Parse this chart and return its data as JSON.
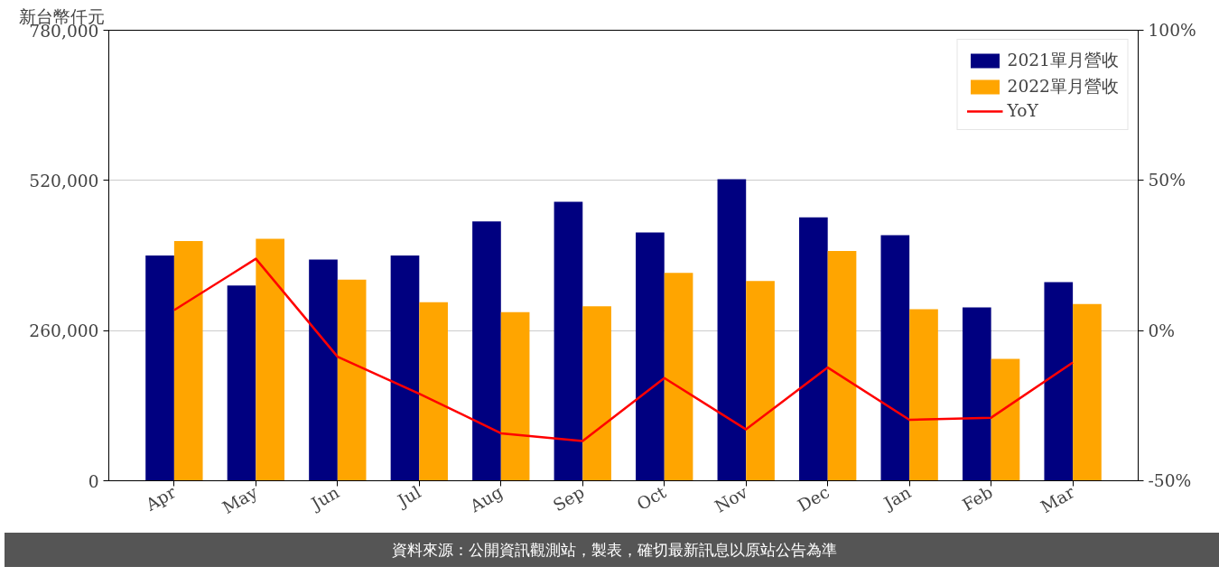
{
  "chart_data": {
    "type": "bar",
    "ylabel": "新台幣仟元",
    "categories": [
      "Apr",
      "May",
      "Jun",
      "Jul",
      "Aug",
      "Sep",
      "Oct",
      "Nov",
      "Dec",
      "Jan",
      "Feb",
      "Mar"
    ],
    "series": [
      {
        "name": "2021單月營收",
        "color": "#000080",
        "values": [
          390000,
          338000,
          383000,
          390000,
          449000,
          483000,
          430000,
          522000,
          456000,
          425000,
          300000,
          344000
        ]
      },
      {
        "name": "2022單月營收",
        "color": "#ffa500",
        "values": [
          415000,
          419000,
          348000,
          309000,
          292000,
          302000,
          360000,
          346000,
          398000,
          297000,
          211000,
          306000
        ]
      },
      {
        "name": "YoY",
        "type": "line",
        "axis": "y2",
        "color": "#ff0000",
        "values": [
          6.8,
          23.9,
          -8.7,
          -21.0,
          -34.2,
          -36.8,
          -15.8,
          -32.9,
          -12.3,
          -29.7,
          -29.0,
          -10.6
        ]
      }
    ],
    "ylim": [
      0,
      780000
    ],
    "yticks": [
      {
        "value": 0,
        "label": "0"
      },
      {
        "value": 260000,
        "label": "260,000"
      },
      {
        "value": 520000,
        "label": "520,000"
      },
      {
        "value": 780000,
        "label": "780,000"
      }
    ],
    "y2lim": [
      -50,
      100
    ],
    "y2ticks": [
      {
        "value": -50,
        "label": "-50%"
      },
      {
        "value": 0,
        "label": "0%"
      },
      {
        "value": 50,
        "label": "50%"
      },
      {
        "value": 100,
        "label": "100%"
      }
    ],
    "grid": "y",
    "legend": "top right",
    "line_style": "solid",
    "annotations": [
      "資料來源：公開資訊觀測站，製表，確切最新訊息以原站公告為準"
    ]
  }
}
